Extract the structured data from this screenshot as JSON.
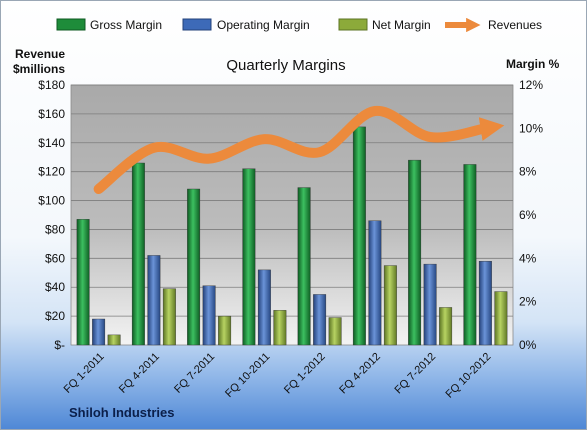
{
  "chart_data": {
    "type": "bar",
    "title": "Quarterly Margins",
    "footer": "Shiloh Industries",
    "left_axis": {
      "label_line1": "Revenue",
      "label_line2": "$millions",
      "ylim": [
        0,
        180
      ],
      "ticks": [
        "$-",
        "$20",
        "$40",
        "$60",
        "$80",
        "$100",
        "$120",
        "$140",
        "$160",
        "$180"
      ]
    },
    "right_axis": {
      "label": "Margin %",
      "ylim": [
        0,
        12
      ],
      "ticks": [
        "0%",
        "2%",
        "4%",
        "6%",
        "8%",
        "10%",
        "12%"
      ]
    },
    "categories": [
      "FQ 1-2011",
      "FQ 4-2011",
      "FQ 7-2011",
      "FQ 10-2011",
      "FQ 1-2012",
      "FQ 4-2012",
      "FQ 7-2012",
      "FQ 10-2012"
    ],
    "legend_position": "top",
    "grid": true,
    "series": [
      {
        "name": "Gross Margin",
        "kind": "bar",
        "axis": "left",
        "color": "#1e8c3a",
        "values": [
          87,
          126,
          108,
          122,
          109,
          151,
          128,
          125
        ]
      },
      {
        "name": "Operating Margin",
        "kind": "bar",
        "axis": "left",
        "color": "#3d6ab8",
        "values": [
          18,
          62,
          41,
          52,
          35,
          86,
          56,
          58
        ]
      },
      {
        "name": "Net Margin",
        "kind": "bar",
        "axis": "left",
        "color": "#8caa3a",
        "values": [
          7,
          39,
          20,
          24,
          19,
          55,
          26,
          37
        ]
      },
      {
        "name": "Revenues",
        "kind": "line",
        "axis": "right",
        "color": "#ec8a3c",
        "values": [
          7.2,
          9.1,
          8.6,
          9.5,
          8.9,
          10.8,
          9.6,
          10.0
        ]
      }
    ]
  }
}
